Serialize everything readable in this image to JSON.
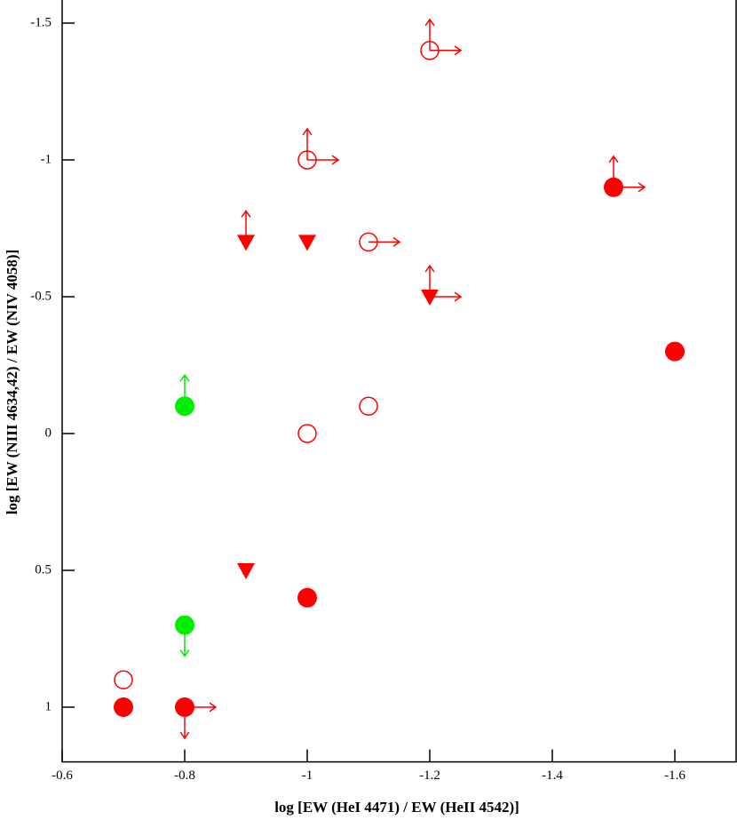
{
  "chart_data": {
    "type": "scatter",
    "xlabel": "log [EW (HeI 4471) / EW (HeII 4542)]",
    "ylabel": "log [EW (NIII 4634,42) / EW (NIV 4058)]",
    "xlim": [
      -0.6,
      -1.7
    ],
    "xticks": [
      -0.6,
      -0.8,
      -1,
      -1.2,
      -1.4,
      -1.6
    ],
    "ylim": [
      1.2,
      -1.6
    ],
    "yticks": [
      -1.5,
      -1,
      -0.5,
      0,
      0.5,
      1
    ],
    "x": [
      -1.2,
      -1.0,
      -1.5,
      -0.9,
      -1.0,
      -1.1,
      -1.2,
      -1.6,
      -0.8,
      -1.0,
      -1.1,
      -0.9,
      -1.0,
      -0.8,
      -0.7,
      -0.7,
      -0.8
    ],
    "y": [
      -1.4,
      -1.0,
      -0.9,
      -0.7,
      -0.7,
      -0.7,
      -0.5,
      -0.3,
      -0.1,
      0,
      -0.1,
      0.5,
      0.6,
      0.7,
      0.9,
      1.0,
      1.0
    ],
    "markers": [
      "open-circle",
      "open-circle",
      "filled-circle",
      "triangle",
      "triangle",
      "open-circle",
      "triangle",
      "filled-circle",
      "filled-circle",
      "open-circle",
      "open-circle",
      "triangle",
      "filled-circle",
      "filled-circle",
      "open-circle",
      "filled-circle",
      "filled-circle"
    ],
    "colors": [
      "#ff0000",
      "#ff0000",
      "#ff0000",
      "#ff0000",
      "#ff0000",
      "#ff0000",
      "#ff0000",
      "#ff0000",
      "#00ee00",
      "#ff0000",
      "#ff0000",
      "#ff0000",
      "#ff0000",
      "#00ee00",
      "#ff0000",
      "#ff0000",
      "#ff0000"
    ],
    "arrows": [
      [
        "up",
        "right"
      ],
      [
        "up",
        "right"
      ],
      [
        "up",
        "right"
      ],
      [
        "up"
      ],
      [],
      [
        "right"
      ],
      [
        "up",
        "right"
      ],
      [],
      [
        "up"
      ],
      [],
      [],
      [],
      [],
      [
        "down"
      ],
      [],
      [],
      [
        "down",
        "right"
      ]
    ]
  }
}
